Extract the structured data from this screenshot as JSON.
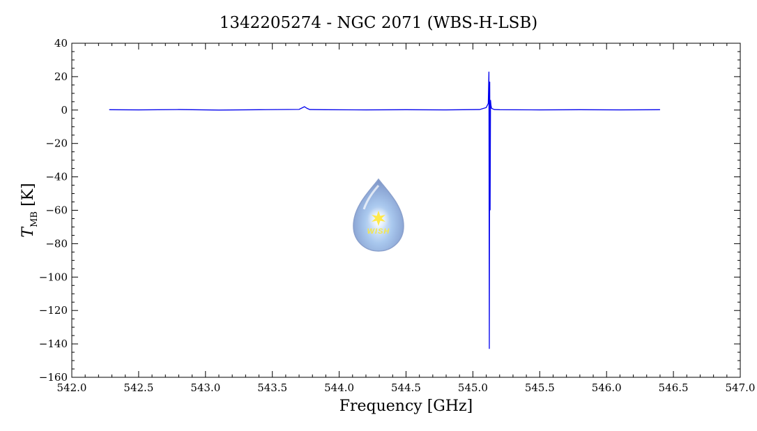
{
  "chart_data": {
    "type": "line",
    "title": "1342205274 - NGC 2071 (WBS-H-LSB)",
    "xlabel": "Frequency [GHz]",
    "ylabel_symbol": "T",
    "ylabel_subscript": "MB",
    "ylabel_unit": "[K]",
    "xlim": [
      542.0,
      547.0
    ],
    "ylim": [
      -160,
      40
    ],
    "x_ticks": [
      542.0,
      542.5,
      543.0,
      543.5,
      544.0,
      544.5,
      545.0,
      545.5,
      546.0,
      546.5,
      547.0
    ],
    "x_tick_labels": [
      "542.0",
      "542.5",
      "543.0",
      "543.5",
      "544.0",
      "544.5",
      "545.0",
      "545.5",
      "546.0",
      "546.5",
      "547.0"
    ],
    "y_ticks": [
      -160,
      -140,
      -120,
      -100,
      -80,
      -60,
      -40,
      -20,
      0,
      20,
      40
    ],
    "y_tick_labels": [
      "−160",
      "−140",
      "−120",
      "−100",
      "−80",
      "−60",
      "−40",
      "−20",
      "0",
      "20",
      "40"
    ],
    "grid": false,
    "line_color": "#0000ee",
    "series": [
      {
        "x": [
          542.28,
          542.5,
          542.8,
          543.1,
          543.4,
          543.7,
          543.74,
          543.76,
          543.78,
          543.9,
          544.2,
          544.5,
          544.8,
          545.05,
          545.1,
          545.115,
          545.12,
          545.123,
          545.126,
          545.129,
          545.132,
          545.135,
          545.14,
          545.16,
          545.2,
          545.5,
          545.8,
          546.1,
          546.4
        ],
        "y": [
          0.2,
          0.1,
          0.3,
          0.0,
          0.2,
          0.4,
          2.0,
          1.0,
          0.3,
          0.2,
          0.1,
          0.2,
          0.1,
          0.3,
          1.5,
          4.0,
          23.0,
          -143.0,
          17.0,
          -60.0,
          6.0,
          3.0,
          1.0,
          0.3,
          0.2,
          0.1,
          0.2,
          0.1,
          0.2
        ]
      }
    ]
  },
  "logo": {
    "text": "WISH"
  }
}
